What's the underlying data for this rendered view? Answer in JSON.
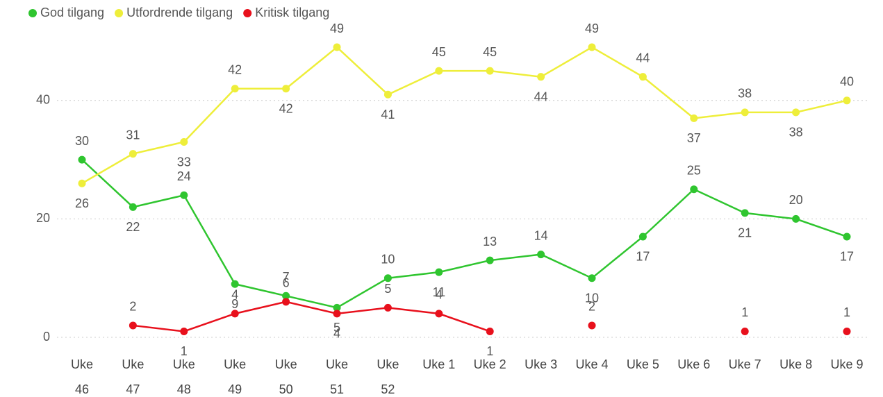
{
  "chart_data": {
    "type": "line",
    "categories": [
      "Uke 46",
      "Uke 47",
      "Uke 48",
      "Uke 49",
      "Uke 50",
      "Uke 51",
      "Uke 52",
      "Uke 1",
      "Uke 2",
      "Uke 3",
      "Uke 4",
      "Uke 5",
      "Uke 6",
      "Uke 7",
      "Uke 8",
      "Uke 9"
    ],
    "series": [
      {
        "name": "God tilgang",
        "color": "#2fc52f",
        "values": [
          30,
          22,
          24,
          9,
          7,
          5,
          10,
          11,
          13,
          14,
          10,
          17,
          25,
          21,
          20,
          17
        ]
      },
      {
        "name": "Utfordrende tilgang",
        "color": "#eeee3a",
        "values": [
          26,
          31,
          33,
          42,
          42,
          49,
          41,
          45,
          45,
          44,
          49,
          44,
          37,
          38,
          38,
          40
        ]
      },
      {
        "name": "Kritisk tilgang",
        "color": "#e8101c",
        "values": [
          null,
          2,
          1,
          4,
          6,
          4,
          5,
          4,
          1,
          null,
          2,
          null,
          null,
          1,
          null,
          1
        ]
      }
    ],
    "ylim": [
      0,
      50
    ],
    "yticks": [
      0,
      20,
      40
    ],
    "grid": true,
    "legend": "top-left"
  }
}
